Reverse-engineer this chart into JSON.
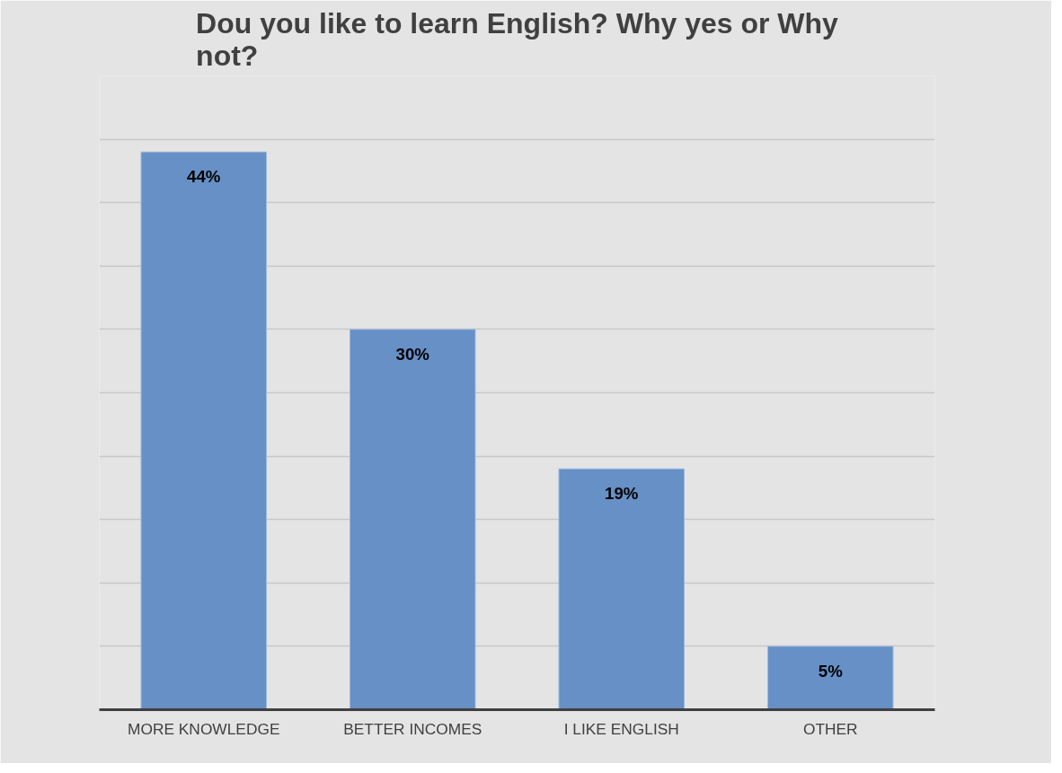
{
  "chart_data": {
    "type": "bar",
    "title": "Dou you like to learn English? Why yes or Why not?",
    "categories": [
      "MORE KNOWLEDGE",
      "BETTER INCOMES",
      "I LIKE ENGLISH",
      "OTHER"
    ],
    "values": [
      44,
      30,
      19,
      5
    ],
    "value_labels": [
      "44%",
      "30%",
      "19%",
      "5%"
    ],
    "color": "#6690c6",
    "ylim": [
      0,
      50
    ],
    "yticks": [
      {
        "value": 0,
        "label": null
      },
      {
        "value": 5,
        "label": null
      },
      {
        "value": 10,
        "label": null
      },
      {
        "value": 15,
        "label": null
      },
      {
        "value": 20,
        "label": null
      },
      {
        "value": 25,
        "label": null
      },
      {
        "value": 30,
        "label": null
      },
      {
        "value": 35,
        "label": null
      },
      {
        "value": 40,
        "label": null
      },
      {
        "value": 45,
        "label": null
      },
      {
        "value": 50,
        "label": null
      }
    ],
    "grid": "y",
    "tick_labels": "x"
  }
}
